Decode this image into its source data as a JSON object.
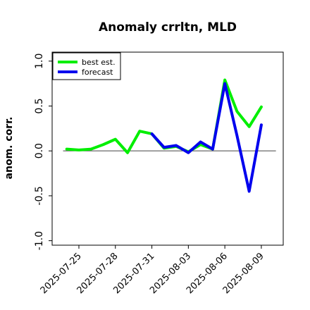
{
  "chart_data": {
    "type": "line",
    "title": "Anomaly crrltn, MLD",
    "xlabel": "",
    "ylabel": "anom. corr.",
    "ylim": [
      -1.05,
      1.1
    ],
    "yticks": [
      "1.0",
      "0.5",
      "0.0",
      "-0.5",
      "-1.0"
    ],
    "ytick_values": [
      1.0,
      0.5,
      0.0,
      -0.5,
      -1.0
    ],
    "xticks": [
      "2025-07-25",
      "2025-07-28",
      "2025-07-31",
      "2025-08-03",
      "2025-08-06",
      "2025-08-09"
    ],
    "xtick_values": [
      1.0,
      4.0,
      7.0,
      10.0,
      13.0,
      16.0
    ],
    "highlighted_xtick": "2025-07-31",
    "highlight_color": "#1a8a1a",
    "xlim": [
      -1.2,
      17.8
    ],
    "reference_line_y": 0.0,
    "legend_position": "top-left",
    "series": [
      {
        "name": "best est.",
        "color": "#00ee00",
        "x": [
          0,
          1,
          2,
          3,
          4,
          5,
          6,
          7,
          8,
          9,
          10,
          11,
          12,
          13,
          14,
          15,
          16
        ],
        "values": [
          0.02,
          0.01,
          0.02,
          0.07,
          0.13,
          -0.02,
          0.22,
          0.19,
          0.03,
          0.05,
          -0.01,
          0.07,
          0.02,
          0.79,
          0.44,
          0.27,
          0.49
        ]
      },
      {
        "name": "forecast",
        "color": "#0000ee",
        "x": [
          7,
          8,
          9,
          10,
          11,
          12,
          13,
          14,
          15,
          16
        ],
        "values": [
          0.19,
          0.04,
          0.06,
          -0.02,
          0.1,
          0.02,
          0.75,
          0.17,
          -0.45,
          0.29
        ]
      }
    ]
  }
}
